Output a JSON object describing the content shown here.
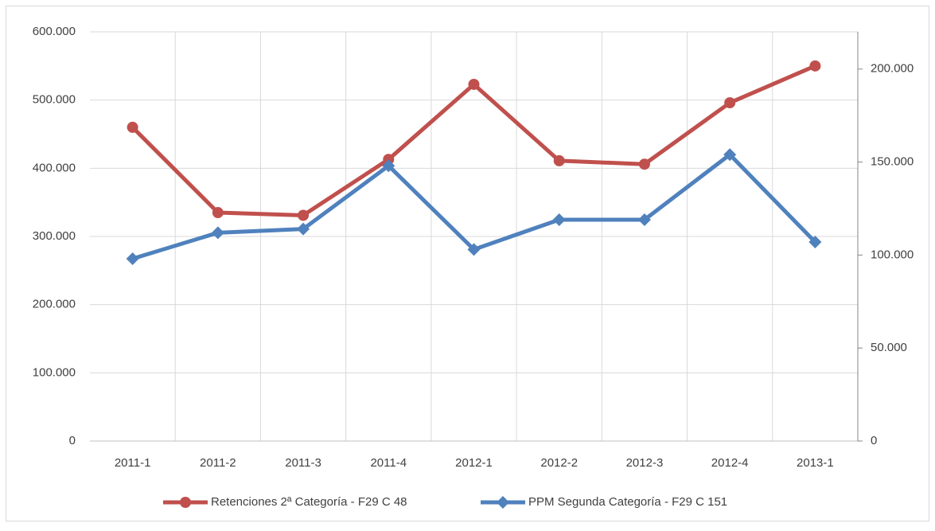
{
  "chart_data": {
    "type": "line",
    "categories": [
      "2011-1",
      "2011-2",
      "2011-3",
      "2011-4",
      "2012-1",
      "2012-2",
      "2012-3",
      "2012-4",
      "2013-1"
    ],
    "series": [
      {
        "name": "Retenciones 2ª Categoría - F29 C 48",
        "color": "#c0504d",
        "marker": "circle",
        "values": [
          460000,
          335000,
          331000,
          413000,
          523000,
          411000,
          406000,
          496000,
          550000
        ]
      },
      {
        "name": "PPM Segunda Categoría - F29 C 151",
        "color": "#4f81bd",
        "marker": "diamond",
        "axis": "y2",
        "values": [
          98000,
          112000,
          114000,
          148000,
          103000,
          119000,
          119000,
          154000,
          107000
        ]
      }
    ],
    "ylim": [
      0,
      600000
    ],
    "yticks": [
      0,
      {
        "value": 100000,
        "label": "100.000"
      },
      {
        "value": 200000,
        "label": "200.000"
      },
      {
        "value": 300000,
        "label": "300.000"
      },
      {
        "value": 400000,
        "label": "400.000"
      },
      {
        "value": 500000,
        "label": "500.000"
      },
      {
        "value": 600000,
        "label": "600.000"
      }
    ],
    "y2lim": [
      0,
      220000
    ],
    "y2ticks": [
      0,
      {
        "value": 50000,
        "label": "50.000"
      },
      {
        "value": 100000,
        "label": "100.000"
      },
      {
        "value": 150000,
        "label": "150.000"
      },
      {
        "value": 200000,
        "label": "200.000"
      }
    ],
    "grid": true,
    "legend": "bottom"
  }
}
